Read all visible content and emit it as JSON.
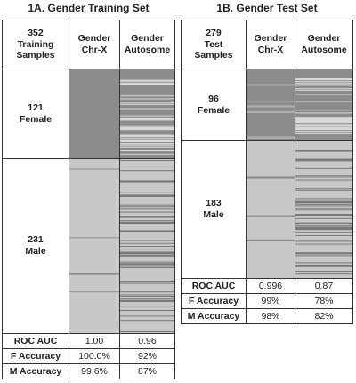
{
  "panels": [
    {
      "title": "1A. Gender Training Set",
      "header": [
        "352\nTraining\nSamples",
        "Gender\nChr-X",
        "Gender\nAutosome"
      ],
      "groups": [
        "121\nFemale",
        "231\nMale"
      ],
      "metrics": [
        [
          "ROC AUC",
          "1.00",
          "0.96"
        ],
        [
          "F Accuracy",
          "100.0%",
          "92%"
        ],
        [
          "M Accuracy",
          "99.6%",
          "87%"
        ]
      ]
    },
    {
      "title": "1B. Gender Test Set",
      "header": [
        "279\nTest\nSamples",
        "Gender\nChr-X",
        "Gender\nAutosome"
      ],
      "groups": [
        "96\nFemale",
        "183\nMale"
      ],
      "metrics": [
        [
          "ROC AUC",
          "0.996",
          "0.87"
        ],
        [
          "F Accuracy",
          "99%",
          "78%"
        ],
        [
          "M Accuracy",
          "98%",
          "82%"
        ]
      ]
    }
  ]
}
